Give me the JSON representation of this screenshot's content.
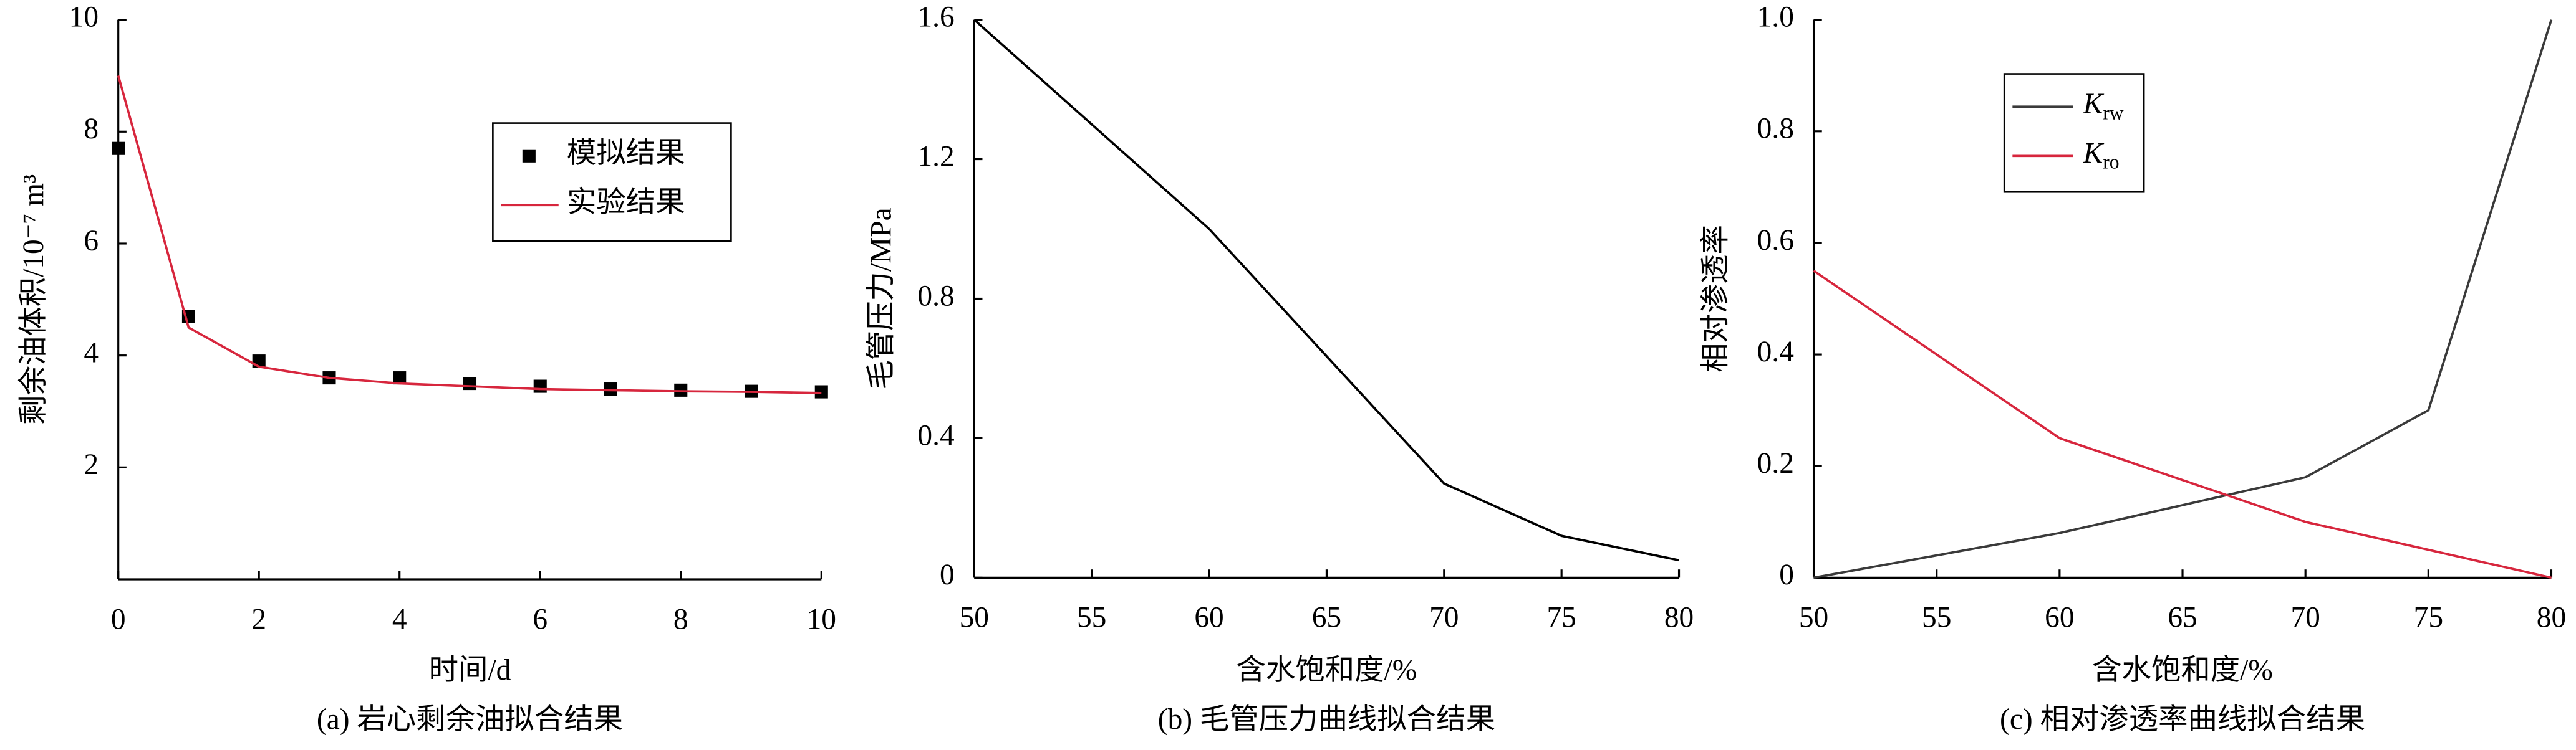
{
  "chart_data": [
    {
      "type": "line",
      "x_label": "时间/d",
      "y_label": "剩余油体积/10⁻⁷ m³",
      "caption": "(a) 岩心剩余油拟合结果",
      "x": [
        0,
        1,
        2,
        3,
        4,
        5,
        6,
        7,
        8,
        9,
        10
      ],
      "series": [
        {
          "name": "模拟结果",
          "mode": "markers",
          "color": "#000000",
          "values": [
            7.7,
            4.7,
            3.9,
            3.6,
            3.6,
            3.5,
            3.45,
            3.4,
            3.38,
            3.36,
            3.35
          ]
        },
        {
          "name": "实验结果",
          "mode": "line",
          "color": "#d7263d",
          "values": [
            9.0,
            4.5,
            3.8,
            3.6,
            3.5,
            3.45,
            3.4,
            3.38,
            3.36,
            3.35,
            3.33
          ]
        }
      ],
      "xlim": [
        0,
        10
      ],
      "xticks": [
        0,
        2,
        4,
        6,
        8,
        10
      ],
      "ylim": [
        0,
        10
      ],
      "yticks": [
        2,
        4,
        6,
        8,
        10
      ],
      "legend": "center right"
    },
    {
      "type": "line",
      "x_label": "含水饱和度/%",
      "y_label": "毛管压力/MPa",
      "caption": "(b) 毛管压力曲线拟合结果",
      "x": [
        50,
        60,
        70,
        75,
        80
      ],
      "series": [
        {
          "mode": "line",
          "color": "#000000",
          "values": [
            1.6,
            1.0,
            0.27,
            0.12,
            0.05
          ]
        }
      ],
      "xlim": [
        50,
        80
      ],
      "xticks": [
        50,
        55,
        60,
        65,
        70,
        75,
        80
      ],
      "ylim": [
        0,
        1.6
      ],
      "yticks": [
        0,
        0.4,
        0.8,
        1.2,
        1.6
      ]
    },
    {
      "type": "line",
      "x_label": "含水饱和度/%",
      "y_label": "相对渗透率",
      "caption": "(c) 相对渗透率曲线拟合结果",
      "x": [
        50,
        60,
        70,
        75,
        80
      ],
      "series": [
        {
          "name": "Krw",
          "mode": "line",
          "color": "#3a3a3a",
          "values": [
            0,
            0.08,
            0.18,
            0.3,
            1.0
          ]
        },
        {
          "name": "Kro",
          "mode": "line",
          "color": "#d7263d",
          "values": [
            0.55,
            0.25,
            0.1,
            0.05,
            0
          ]
        }
      ],
      "xlim": [
        50,
        80
      ],
      "xticks": [
        50,
        55,
        60,
        65,
        70,
        75,
        80
      ],
      "ylim": [
        0,
        1
      ],
      "yticks": [
        0,
        0.2,
        0.4,
        0.6,
        0.8,
        {
          "value": 1,
          "label": "1.0"
        }
      ],
      "legend": "upper left"
    }
  ]
}
